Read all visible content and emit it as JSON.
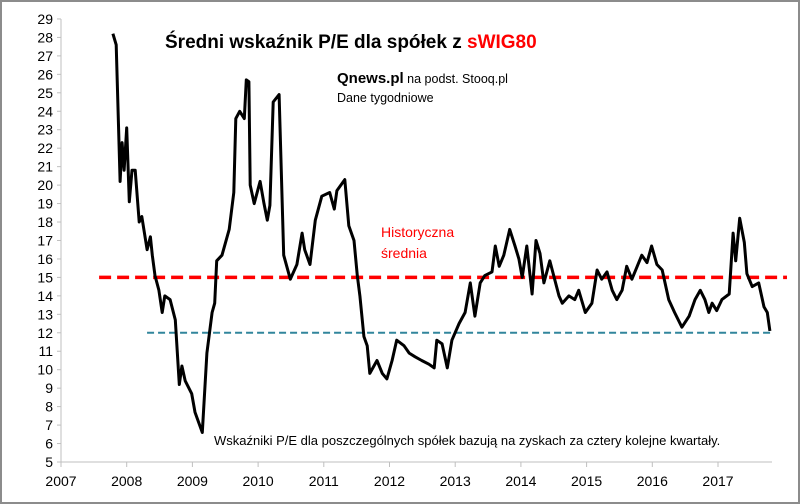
{
  "chart_data": {
    "type": "line",
    "title_main": "Średni wskaźnik P/E dla spółek z ",
    "title_highlight": "sWIG80",
    "source_brand": "Qnews.pl",
    "source_rest": " na podst. Stooq.pl",
    "frequency": "Dane tygodniowe",
    "footnote": "Wskaźniki P/E dla poszczególnych spółek bazują na zyskach za cztery kolejne kwartały.",
    "xlabel": "",
    "ylabel": "",
    "xlim": [
      2007,
      2017.83
    ],
    "ylim": [
      5,
      29
    ],
    "x_ticks": [
      "2007",
      "2008",
      "2009",
      "2010",
      "2011",
      "2012",
      "2013",
      "2014",
      "2015",
      "2016",
      "2017"
    ],
    "y_ticks": [
      "5",
      "6",
      "7",
      "8",
      "9",
      "10",
      "11",
      "12",
      "13",
      "14",
      "15",
      "16",
      "17",
      "18",
      "19",
      "20",
      "21",
      "22",
      "23",
      "24",
      "25",
      "26",
      "27",
      "28",
      "29"
    ],
    "grid": false,
    "colors": {
      "series": "#000000",
      "average": "#ff0000",
      "level": "#31859c",
      "highlight": "#ff0000"
    },
    "reference_lines": [
      {
        "name": "historical-average",
        "label_line1": "Historyczna",
        "label_line2": "średnia",
        "value": 15,
        "x_from": 2007.58,
        "x_to": 2018.05
      },
      {
        "name": "level-12",
        "value": 12,
        "x_from": 2008.31,
        "x_to": 2017.82
      }
    ],
    "series": [
      {
        "name": "Średni P/E sWIG80",
        "x": [
          2007.79,
          2007.84,
          2007.9,
          2007.93,
          2007.96,
          2008.0,
          2008.04,
          2008.08,
          2008.13,
          2008.19,
          2008.23,
          2008.31,
          2008.36,
          2008.39,
          2008.43,
          2008.49,
          2008.54,
          2008.58,
          2008.66,
          2008.74,
          2008.8,
          2008.84,
          2008.89,
          2008.99,
          2009.04,
          2009.15,
          2009.22,
          2009.3,
          2009.34,
          2009.37,
          2009.45,
          2009.56,
          2009.63,
          2009.66,
          2009.72,
          2009.79,
          2009.82,
          2009.86,
          2009.88,
          2009.94,
          2010.03,
          2010.09,
          2010.14,
          2010.18,
          2010.23,
          2010.32,
          2010.39,
          2010.49,
          2010.59,
          2010.67,
          2010.71,
          2010.79,
          2010.87,
          2010.97,
          2011.09,
          2011.16,
          2011.2,
          2011.32,
          2011.38,
          2011.46,
          2011.51,
          2011.55,
          2011.61,
          2011.66,
          2011.7,
          2011.81,
          2011.89,
          2011.96,
          2012.04,
          2012.11,
          2012.22,
          2012.3,
          2012.39,
          2012.49,
          2012.6,
          2012.68,
          2012.72,
          2012.8,
          2012.88,
          2012.95,
          2013.06,
          2013.15,
          2013.23,
          2013.3,
          2013.38,
          2013.45,
          2013.56,
          2013.61,
          2013.67,
          2013.74,
          2013.83,
          2013.91,
          2013.97,
          2014.02,
          2014.09,
          2014.17,
          2014.23,
          2014.29,
          2014.35,
          2014.44,
          2014.58,
          2014.63,
          2014.73,
          2014.82,
          2014.88,
          2014.98,
          2015.08,
          2015.16,
          2015.23,
          2015.31,
          2015.39,
          2015.46,
          2015.54,
          2015.61,
          2015.69,
          2015.84,
          2015.92,
          2015.99,
          2016.07,
          2016.15,
          2016.25,
          2016.34,
          2016.45,
          2016.56,
          2016.65,
          2016.73,
          2016.8,
          2016.86,
          2016.91,
          2016.98,
          2017.06,
          2017.17,
          2017.23,
          2017.27,
          2017.33,
          2017.4,
          2017.44,
          2017.52,
          2017.62,
          2017.7,
          2017.75,
          2017.79
        ],
        "y": [
          28.2,
          27.6,
          20.2,
          22.3,
          20.8,
          23.1,
          19.1,
          20.8,
          20.8,
          18.0,
          18.3,
          16.5,
          17.2,
          16.2,
          15.1,
          14.3,
          13.1,
          14.0,
          13.8,
          12.7,
          9.2,
          10.2,
          9.4,
          8.7,
          7.7,
          6.6,
          10.9,
          13.1,
          13.6,
          15.9,
          16.2,
          17.6,
          19.6,
          23.6,
          24.0,
          23.6,
          25.7,
          25.6,
          20.0,
          19.0,
          20.2,
          19.0,
          18.1,
          18.9,
          24.5,
          24.9,
          16.2,
          14.9,
          15.7,
          17.4,
          16.5,
          15.7,
          18.1,
          19.4,
          19.6,
          18.7,
          19.7,
          20.3,
          17.8,
          17.0,
          15.1,
          14.0,
          11.8,
          11.3,
          9.8,
          10.5,
          9.8,
          9.5,
          10.5,
          11.6,
          11.3,
          10.9,
          10.7,
          10.5,
          10.3,
          10.1,
          11.6,
          11.4,
          10.1,
          11.6,
          12.5,
          13.1,
          14.7,
          12.9,
          14.7,
          15.1,
          15.3,
          16.7,
          15.6,
          16.2,
          17.6,
          16.7,
          16.0,
          15.0,
          16.7,
          14.1,
          17.0,
          16.3,
          14.7,
          15.9,
          14.0,
          13.6,
          14.0,
          13.8,
          14.3,
          13.1,
          13.6,
          15.4,
          14.9,
          15.3,
          14.3,
          13.8,
          14.3,
          15.6,
          14.9,
          16.2,
          15.8,
          16.7,
          15.7,
          15.4,
          13.8,
          13.1,
          12.3,
          12.9,
          13.8,
          14.3,
          13.8,
          13.1,
          13.6,
          13.2,
          13.8,
          14.1,
          17.4,
          15.9,
          18.2,
          16.9,
          15.2,
          14.5,
          14.7,
          13.4,
          13.1,
          12.1
        ]
      }
    ]
  }
}
